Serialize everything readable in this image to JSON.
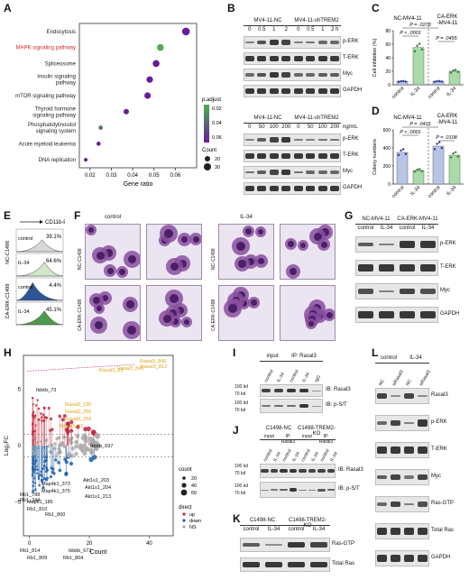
{
  "panels": {
    "A": {
      "label": "A",
      "xlabel": "Gene ratio",
      "ticks_x": [
        "0.02",
        "0.03",
        "0.04",
        "0.05",
        "0.06"
      ],
      "legend_padj_title": "p.adjust",
      "legend_padj_ticks": [
        "0.02",
        "0.04",
        "0.06"
      ],
      "legend_count_title": "Count",
      "legend_count_ticks": [
        "20",
        "30"
      ]
    },
    "B": {
      "label": "B",
      "top_groups": [
        "MV4-11-NC",
        "MV4-11-shTREM2"
      ],
      "top_times": [
        "0",
        "0.5",
        "1",
        "2",
        "0",
        "0.5",
        "1",
        "2 h"
      ],
      "top_bands": [
        "p-ERK",
        "T-ERK",
        "Myc",
        "GAPDH"
      ],
      "bottom_groups": [
        "MV4-11-NC",
        "MV4-11-shTREM2"
      ],
      "bottom_doses": [
        "0",
        "50",
        "100",
        "200",
        "0",
        "50",
        "100",
        "200"
      ],
      "bottom_unit": "ng/mL",
      "bottom_bands": [
        "p-ERK",
        "T-ERK",
        "Myc",
        "GAPDH"
      ]
    },
    "C": {
      "label": "C",
      "group_left": "NC-MV4-11",
      "group_right": "CA-ERK\n-MV4-11",
      "ylabel": "Cell inhibition (%)",
      "yticks": [
        "0",
        "20",
        "40",
        "60",
        "80"
      ],
      "xcats": [
        "control",
        "IL-34",
        "control",
        "IL-34"
      ],
      "pvals": [
        "P = .0278",
        "P < .0001",
        "P = .0455"
      ]
    },
    "D": {
      "label": "D",
      "group_left": "NC-MV4-11",
      "group_right": "CA-ERK\n-MV4-11",
      "ylabel": "Colony numbers",
      "yticks": [
        "0",
        "200",
        "400",
        "600"
      ],
      "xcats": [
        "control",
        "IL-34",
        "control",
        "IL-34"
      ],
      "pvals": [
        "P = .0415",
        "P < .0001",
        "P = .0108"
      ]
    },
    "E": {
      "label": "E",
      "marker": "CD11b-PE",
      "rows": [
        {
          "group": "NC-C1498",
          "cond": "control",
          "pct": "39.1%"
        },
        {
          "group": "NC-C1498",
          "cond": "IL-34",
          "pct": "64.6%"
        },
        {
          "group": "CA-ERK-C1498",
          "cond": "control",
          "pct": "4.4%"
        },
        {
          "group": "CA-ERK-C1498",
          "cond": "IL-34",
          "pct": "45.1%"
        }
      ]
    },
    "F": {
      "label": "F",
      "cols": [
        "control",
        "IL-34"
      ],
      "rows": [
        "NC-C1498",
        "CA-ERK-C1498"
      ]
    },
    "G": {
      "label": "G",
      "groups": [
        "NC-MV4-11",
        "CA-ERK-MV4-11"
      ],
      "lanes": [
        "control",
        "IL-34",
        "control",
        "IL-34"
      ],
      "bands": [
        "p-ERK",
        "T-ERK",
        "Myc",
        "GAPDH"
      ]
    },
    "H": {
      "label": "H",
      "xlabel": "Count",
      "ylabel": "Log₂FC",
      "yticks": [
        "−5",
        "0",
        "5"
      ],
      "xticks": [
        "0",
        "20",
        "40"
      ],
      "legend_count_title": "count",
      "legend_count_ticks": [
        "20",
        "40",
        "60"
      ],
      "legend_direct_title": "direct",
      "legend_direct_items": [
        "up",
        "down",
        "NS"
      ],
      "labels_up": [
        "Rasal3_845",
        "Rasal3_843",
        "Rasal3_53",
        "Rasal3_813",
        "Rasal3_190",
        "Rasal3_256",
        "Rasal3_259",
        "Rasal3_72"
      ],
      "labels_black": [
        "Ikbkb_73",
        "Ikbkb_697",
        "Akt1s1_203",
        "Akt1s1_204",
        "Map4k1_373",
        "Map4k1_375",
        "Akt1s1_213",
        "Mapk1_185",
        "Rb1_810",
        "Rb1_800",
        "Rb1_788",
        "Rb1_344",
        "Rb1_814",
        "Rb1_809",
        "Ikbkb_672",
        "Rb1_804"
      ]
    },
    "I": {
      "label": "I",
      "input": "input",
      "ip": "IP: Rasal3",
      "lanes": [
        "control",
        "IL-34",
        "control",
        "IL-34",
        "IgG"
      ],
      "mw": [
        "100 kd",
        "70 kd",
        "100 kd",
        "70 kd"
      ],
      "ib": [
        "IB: Rasal3",
        "IB: p-S/T"
      ]
    },
    "J": {
      "label": "J",
      "groups": [
        "C1498-NC",
        "C1498-TREM2-KO"
      ],
      "sub": [
        "input",
        "IP: Rasal3",
        "input",
        "IP: Rasal3"
      ],
      "lanes": [
        "control",
        "IL-34",
        "control",
        "IL-34",
        "control",
        "IL-34",
        "control",
        "IL-34"
      ],
      "mw": [
        "100 kd",
        "70 kd",
        "100 kd",
        "70 kd"
      ],
      "ib": [
        "IB: Rasal3",
        "IB: p-S/T"
      ]
    },
    "K": {
      "label": "K",
      "groups": [
        "C1498-NC",
        "C1498-TREM2-KO"
      ],
      "lanes": [
        "control",
        "IL-34",
        "control",
        "IL-34"
      ],
      "bands": [
        "Ras-GTP",
        "Total Ras"
      ]
    },
    "L": {
      "label": "L",
      "groups": [
        "control",
        "IL-34"
      ],
      "lanes": [
        "NC",
        "siRasal3",
        "NC",
        "siRasal3"
      ],
      "bands": [
        "Rasal3",
        "p-ERK",
        "T-ERK",
        "Myc",
        "Ras-GTP",
        "Total Ras",
        "GAPDH"
      ]
    }
  },
  "chart_data": [
    {
      "panel": "A",
      "type": "scatter",
      "categories": [
        "Endocytosis",
        "MAPK signaling pathway",
        "Spliceosome",
        "Insulin signaling pathway",
        "mTOR signaling pathway",
        "Thyroid hormone signaling pathway",
        "Phosphatidylinositol signaling system",
        "Acute myeloid leukemia",
        "DNA replication"
      ],
      "x": [
        0.065,
        0.053,
        0.051,
        0.048,
        0.047,
        0.037,
        0.025,
        0.024,
        0.018
      ],
      "count": [
        33,
        28,
        28,
        26,
        26,
        20,
        14,
        13,
        10
      ],
      "padj": [
        0.065,
        0.01,
        0.065,
        0.065,
        0.065,
        0.065,
        0.03,
        0.065,
        0.065
      ],
      "xlabel": "Gene ratio",
      "xlim": [
        0.015,
        0.07
      ],
      "highlight_category": "MAPK signaling pathway",
      "highlight_color": "#d62728"
    },
    {
      "panel": "C",
      "type": "bar",
      "categories": [
        "control",
        "IL-34",
        "control",
        "IL-34"
      ],
      "values": [
        5,
        55,
        5,
        20
      ],
      "ylabel": "Cell inhibition (%)",
      "ylim": [
        0,
        80
      ],
      "bar_colors": [
        "#b7c4e6",
        "#a8dba8",
        "#b7c4e6",
        "#a8dba8"
      ]
    },
    {
      "panel": "D",
      "type": "bar",
      "categories": [
        "control",
        "IL-34",
        "control",
        "IL-34"
      ],
      "values": [
        350,
        150,
        420,
        320
      ],
      "ylabel": "Colony numbers",
      "ylim": [
        0,
        600
      ],
      "bar_colors": [
        "#b7c4e6",
        "#a8dba8",
        "#b7c4e6",
        "#a8dba8"
      ]
    },
    {
      "panel": "H",
      "type": "scatter",
      "xlabel": "Count",
      "ylabel": "Log₂FC",
      "xlim": [
        -2,
        48
      ],
      "ylim": [
        -8,
        8
      ],
      "up_color": "#c2263c",
      "down_color": "#1f5fa6",
      "ns_color": "#aaaaaa"
    }
  ]
}
